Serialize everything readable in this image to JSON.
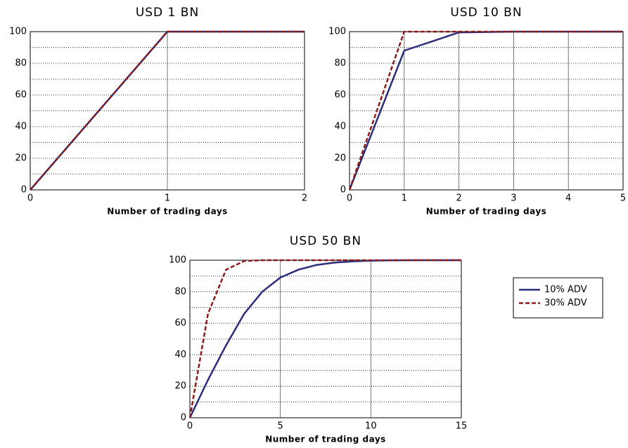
{
  "chart_data": [
    {
      "type": "line",
      "title": "USD 1 BN",
      "xlabel": "Number of trading days",
      "x": [
        0,
        1,
        2
      ],
      "xlim": [
        0,
        2
      ],
      "xticks": [
        0,
        1,
        2
      ],
      "ylim": [
        0,
        100
      ],
      "yticks": [
        0,
        20,
        40,
        60,
        80,
        100
      ],
      "yminorticks": [
        10,
        30,
        50,
        70,
        90
      ],
      "grid": true,
      "series": [
        {
          "name": "10% ADV",
          "color": "#2b2e7a",
          "line_style": "solid",
          "values": [
            0,
            100,
            100
          ]
        },
        {
          "name": "30% ADV",
          "color": "#8b1a1a",
          "line_style": "dashed",
          "values": [
            0,
            100,
            100
          ]
        }
      ]
    },
    {
      "type": "line",
      "title": "USD 10 BN",
      "xlabel": "Number of trading days",
      "x": [
        0,
        1,
        2,
        3,
        4,
        5
      ],
      "xlim": [
        0,
        5
      ],
      "xticks": [
        0,
        1,
        2,
        3,
        4,
        5
      ],
      "ylim": [
        0,
        100
      ],
      "yticks": [
        0,
        20,
        40,
        60,
        80,
        100
      ],
      "yminorticks": [
        10,
        30,
        50,
        70,
        90
      ],
      "grid": true,
      "series": [
        {
          "name": "10% ADV",
          "color": "#2b2e7a",
          "line_style": "solid",
          "values": [
            0,
            88,
            99.5,
            100,
            100,
            100
          ]
        },
        {
          "name": "30% ADV",
          "color": "#8b1a1a",
          "line_style": "dashed",
          "values": [
            0,
            100,
            100,
            100,
            100,
            100
          ]
        }
      ]
    },
    {
      "type": "line",
      "title": "USD 50 BN",
      "xlabel": "Number of trading days",
      "x": [
        0,
        1,
        2,
        3,
        4,
        5,
        6,
        7,
        8,
        9,
        10,
        11,
        12,
        13,
        14,
        15
      ],
      "xlim": [
        0,
        15
      ],
      "xticks": [
        0,
        5,
        10,
        15
      ],
      "ylim": [
        0,
        100
      ],
      "yticks": [
        0,
        20,
        40,
        60,
        80,
        100
      ],
      "yminorticks": [
        10,
        30,
        50,
        70,
        90
      ],
      "grid": true,
      "legend": "outside-right",
      "series": [
        {
          "name": "10% ADV",
          "color": "#2b2e7a",
          "line_style": "solid",
          "values": [
            0,
            24,
            46,
            66,
            80,
            89,
            94,
            97,
            98.5,
            99.3,
            99.7,
            99.9,
            100,
            100,
            100,
            100
          ]
        },
        {
          "name": "30% ADV",
          "color": "#8b1a1a",
          "line_style": "dashed",
          "values": [
            0,
            66,
            94,
            99.5,
            100,
            100,
            100,
            100,
            100,
            100,
            100,
            100,
            100,
            100,
            100,
            100
          ]
        }
      ]
    }
  ]
}
